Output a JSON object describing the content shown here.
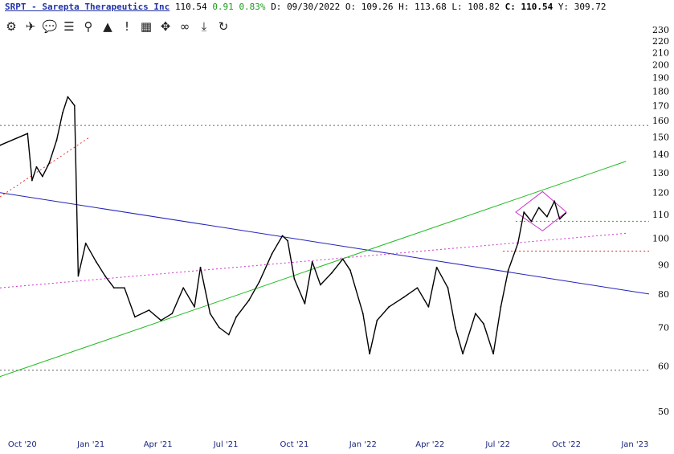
{
  "header": {
    "symbol_line": "SRPT - Sarepta Therapeutics Inc",
    "last": "110.54",
    "change": "0.91",
    "change_pct": "0.83%",
    "date_label": "D:",
    "date": "09/30/2022",
    "open_label": "O:",
    "open": "109.26",
    "high_label": "H:",
    "high": "113.68",
    "low_label": "L:",
    "low": "108.82",
    "close_label": "C:",
    "close": "110.54",
    "year_label": "Y:",
    "year": "309.72"
  },
  "toolbar": [
    {
      "name": "chart-settings-icon",
      "glyph": "⚙"
    },
    {
      "name": "twitter-icon",
      "glyph": "✈"
    },
    {
      "name": "comment-icon",
      "glyph": "💬"
    },
    {
      "name": "list-icon",
      "glyph": "☰"
    },
    {
      "name": "search-icon",
      "glyph": "⚲"
    },
    {
      "name": "triangle-icon",
      "glyph": "▲"
    },
    {
      "name": "alert-icon",
      "glyph": "!"
    },
    {
      "name": "calendar-icon",
      "glyph": "▦"
    },
    {
      "name": "move-icon",
      "glyph": "✥"
    },
    {
      "name": "link-icon",
      "glyph": "∞"
    },
    {
      "name": "download-icon",
      "glyph": "⤓"
    },
    {
      "name": "refresh-icon",
      "glyph": "↻"
    }
  ],
  "chart_data": {
    "type": "line",
    "title": "SRPT - Sarepta Therapeutics Inc",
    "y_scale": "log",
    "ylim": [
      45,
      240
    ],
    "xlim": [
      "2020-09-01",
      "2023-01-20"
    ],
    "y_ticks": [
      230,
      220,
      210,
      200,
      190,
      180,
      170,
      160,
      150,
      140,
      130,
      120,
      110,
      100,
      90,
      80,
      70,
      60,
      50
    ],
    "x_ticks": [
      {
        "label": "Oct '20",
        "date": "2020-10-01"
      },
      {
        "label": "Jan '21",
        "date": "2021-01-01"
      },
      {
        "label": "Apr '21",
        "date": "2021-04-01"
      },
      {
        "label": "Jul '21",
        "date": "2021-07-01"
      },
      {
        "label": "Oct '21",
        "date": "2021-10-01"
      },
      {
        "label": "Jan '22",
        "date": "2022-01-01"
      },
      {
        "label": "Apr '22",
        "date": "2022-04-01"
      },
      {
        "label": "Jul '22",
        "date": "2022-07-01"
      },
      {
        "label": "Oct '22",
        "date": "2022-10-01"
      },
      {
        "label": "Jan '23",
        "date": "2023-01-01"
      }
    ],
    "series": [
      {
        "color": "#000000",
        "x": [
          "2020-09-01",
          "2020-10-08",
          "2020-10-14",
          "2020-10-20",
          "2020-10-28",
          "2020-11-06",
          "2020-11-16",
          "2020-11-24",
          "2020-12-01",
          "2020-12-07",
          "2020-12-10",
          "2020-12-15",
          "2020-12-25",
          "2021-01-08",
          "2021-01-20",
          "2021-02-01",
          "2021-02-15",
          "2021-03-01",
          "2021-03-20",
          "2021-04-05",
          "2021-04-20",
          "2021-05-05",
          "2021-05-20",
          "2021-05-28",
          "2021-06-10",
          "2021-06-22",
          "2021-07-05",
          "2021-07-15",
          "2021-08-01",
          "2021-08-15",
          "2021-09-01",
          "2021-09-15",
          "2021-09-22",
          "2021-10-01",
          "2021-10-15",
          "2021-10-25",
          "2021-11-05",
          "2021-11-20",
          "2021-12-05",
          "2021-12-15",
          "2022-01-01",
          "2022-01-10",
          "2022-01-20",
          "2022-02-05",
          "2022-02-25",
          "2022-03-15",
          "2022-03-30",
          "2022-04-10",
          "2022-04-25",
          "2022-05-05",
          "2022-05-15",
          "2022-06-01",
          "2022-06-12",
          "2022-06-25",
          "2022-07-05",
          "2022-07-15",
          "2022-07-28",
          "2022-08-05",
          "2022-08-15",
          "2022-08-25",
          "2022-09-05",
          "2022-09-15",
          "2022-09-22",
          "2022-09-30"
        ],
        "values": [
          145,
          152,
          126,
          133,
          128,
          135,
          148,
          165,
          176,
          172,
          170,
          86,
          98,
          91,
          86,
          82,
          82,
          73,
          75,
          72,
          74,
          82,
          76,
          89,
          74,
          70,
          68,
          73,
          78,
          84,
          94,
          101,
          99,
          85,
          77,
          91,
          83,
          87,
          92,
          88,
          74,
          63,
          72,
          76,
          79,
          82,
          76,
          89,
          82,
          70,
          63,
          74,
          71,
          63,
          76,
          88,
          98,
          111,
          107,
          113,
          109,
          116,
          108,
          110.54
        ]
      }
    ],
    "reference_lines": [
      {
        "type": "horizontal",
        "y": 157,
        "color": "#666666",
        "style": "dotted"
      },
      {
        "type": "horizontal",
        "y": 59,
        "color": "#666666",
        "style": "dotted"
      },
      {
        "type": "horizontal",
        "y": 107,
        "color": "#22aa22",
        "style": "dotted",
        "x_start": "2022-07-25"
      },
      {
        "type": "horizontal",
        "y": 95,
        "color": "#dd2222",
        "style": "dotted",
        "x_start": "2022-07-08"
      }
    ],
    "trendlines": [
      {
        "color": "#2222bb",
        "style": "solid",
        "points": [
          [
            "2020-09-01",
            120
          ],
          [
            "2023-01-20",
            80
          ]
        ]
      },
      {
        "color": "#22bb22",
        "style": "solid",
        "points": [
          [
            "2020-09-01",
            57.5
          ],
          [
            "2022-12-20",
            136
          ]
        ]
      },
      {
        "color": "#cc33cc",
        "style": "dotted",
        "points": [
          [
            "2020-09-01",
            82
          ],
          [
            "2022-12-20",
            102
          ]
        ]
      },
      {
        "color": "#ee3333",
        "style": "dotted",
        "points": [
          [
            "2020-09-01",
            118
          ],
          [
            "2020-12-31",
            150
          ]
        ]
      }
    ],
    "pattern": {
      "type": "diamond",
      "color": "#cc33cc",
      "points": [
        [
          "2022-07-25",
          111
        ],
        [
          "2022-08-30",
          120.5
        ],
        [
          "2022-10-01",
          111
        ],
        [
          "2022-08-30",
          103
        ]
      ]
    }
  }
}
